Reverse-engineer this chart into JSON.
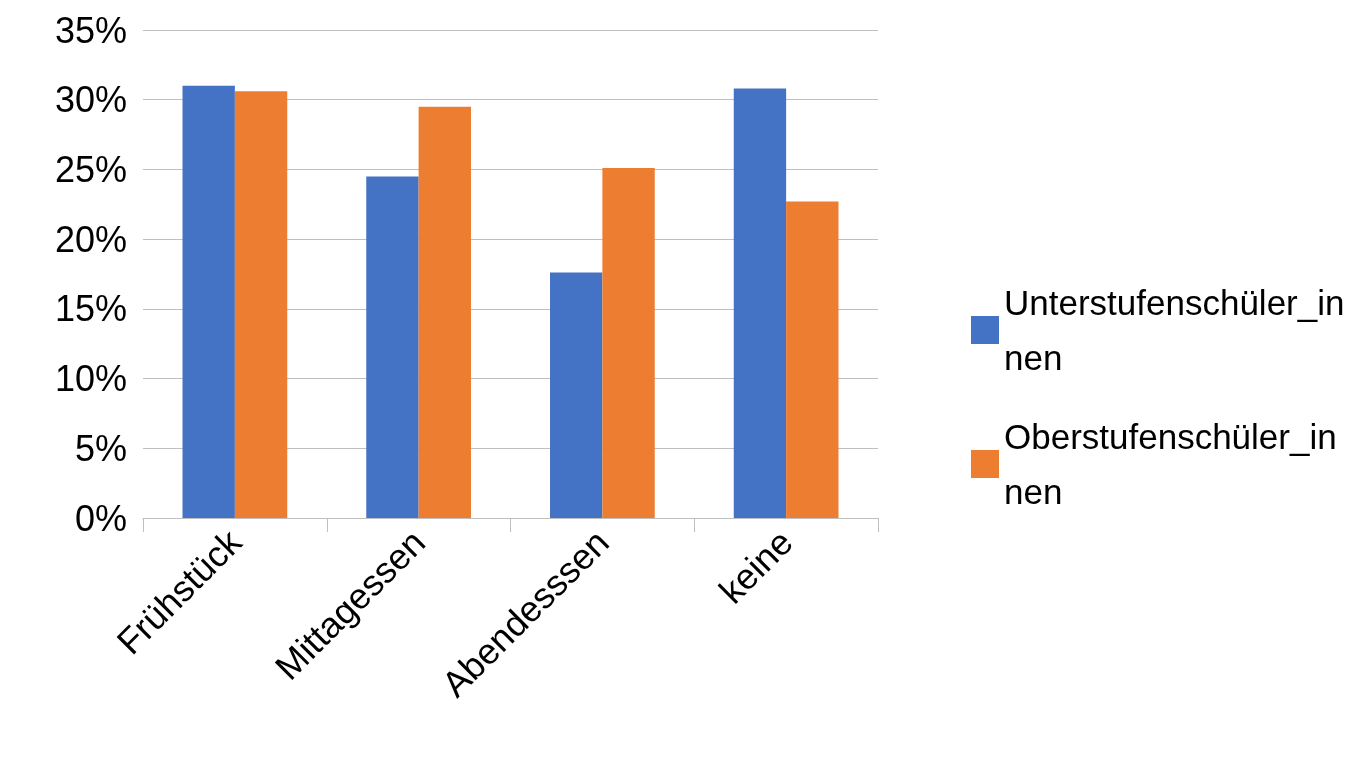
{
  "chart_data": {
    "type": "bar",
    "categories": [
      "Frühstück",
      "Mittagessen",
      "Abendesssen",
      "keine"
    ],
    "series": [
      {
        "name": "Unterstufenschüler_innen",
        "color": "#4472c4",
        "values": [
          31.0,
          24.5,
          17.6,
          30.8
        ]
      },
      {
        "name": "Oberstufenschüler_innen",
        "color": "#ed7d31",
        "values": [
          30.6,
          29.5,
          25.1,
          22.7
        ]
      }
    ],
    "ylim": [
      0,
      35
    ],
    "yticks": [
      {
        "value": 0,
        "label": "0%"
      },
      {
        "value": 5,
        "label": "5%"
      },
      {
        "value": 10,
        "label": "10%"
      },
      {
        "value": 15,
        "label": "15%"
      },
      {
        "value": 20,
        "label": "20%"
      },
      {
        "value": 25,
        "label": "25%"
      },
      {
        "value": 30,
        "label": "30%"
      },
      {
        "value": 35,
        "label": "35%"
      }
    ],
    "grid": "y",
    "legend": "right"
  }
}
